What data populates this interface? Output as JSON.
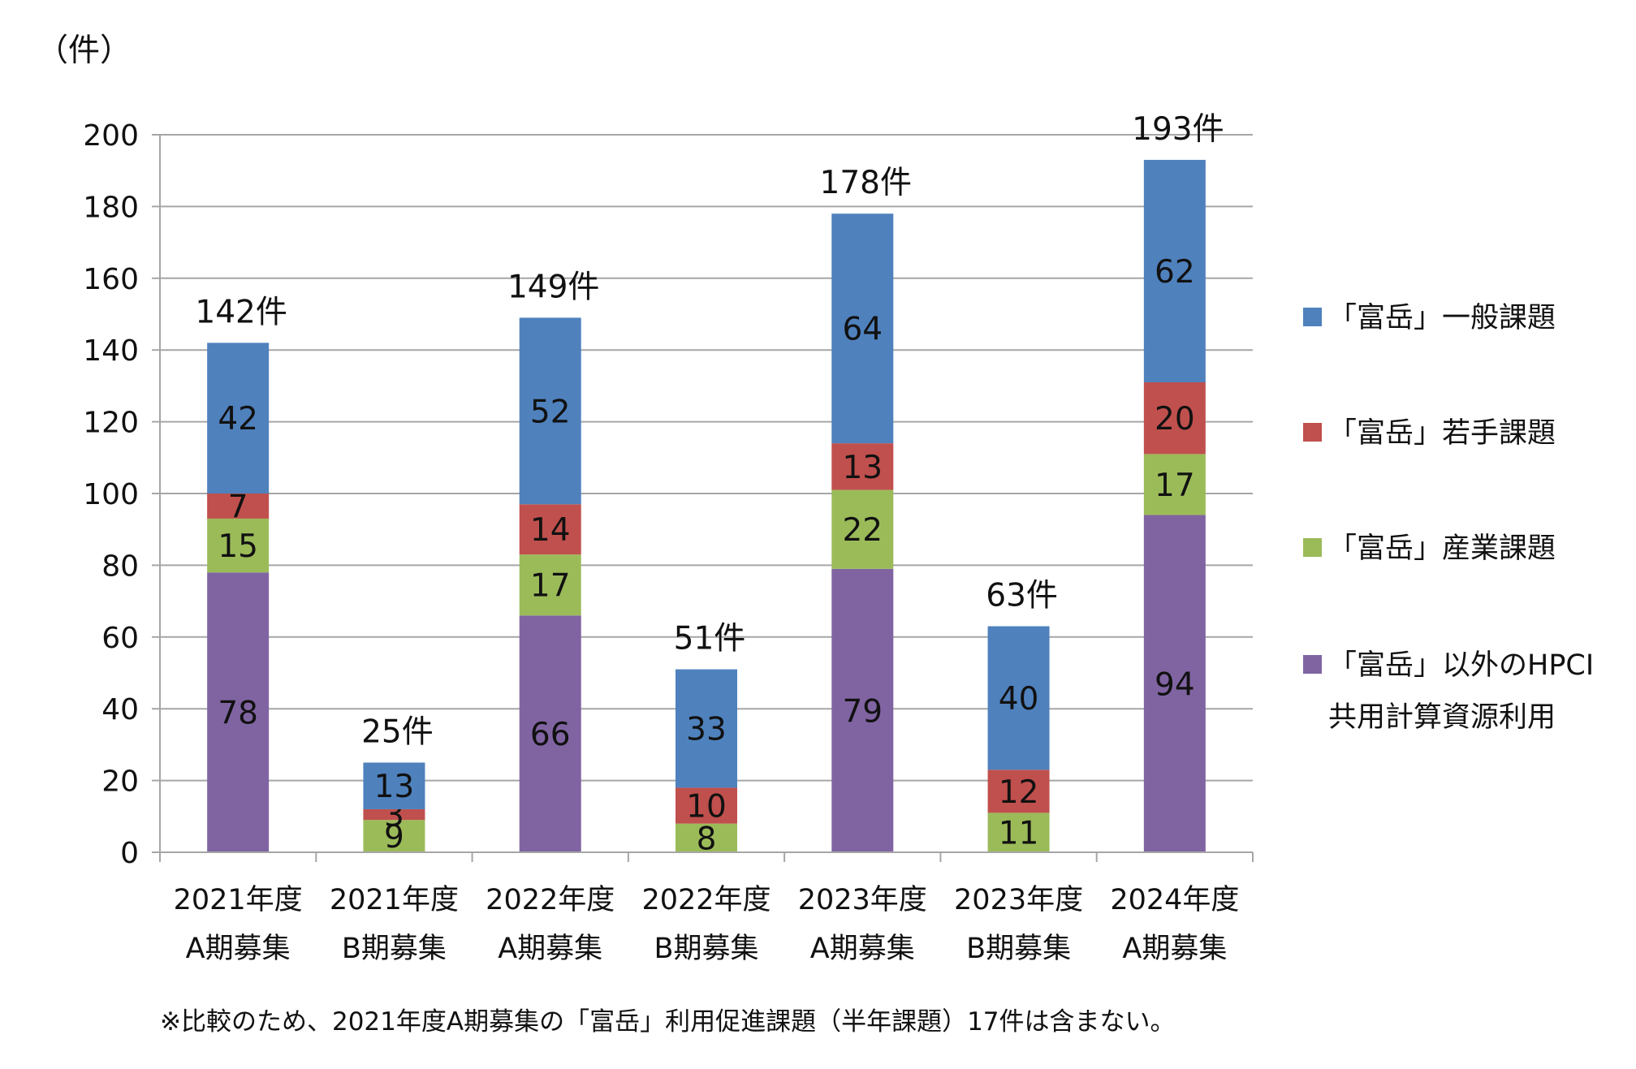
{
  "chart_data": {
    "type": "bar",
    "stacked": true,
    "unit_label": "（件）",
    "title": "",
    "xlabel": "",
    "ylabel": "",
    "ylim": [
      0,
      200
    ],
    "yticks": [
      0,
      20,
      40,
      60,
      80,
      100,
      120,
      140,
      160,
      180,
      200
    ],
    "grid": true,
    "legend_position": "right",
    "categories": [
      [
        "2021年度",
        "A期募集"
      ],
      [
        "2021年度",
        "B期募集"
      ],
      [
        "2022年度",
        "A期募集"
      ],
      [
        "2022年度",
        "B期募集"
      ],
      [
        "2023年度",
        "A期募集"
      ],
      [
        "2023年度",
        "B期募集"
      ],
      [
        "2024年度",
        "A期募集"
      ]
    ],
    "series": [
      {
        "name": "「富岳」以外のHPCI共用計算資源利用",
        "legend_lines": [
          "「富岳」以外のHPCI",
          "共用計算資源利用"
        ],
        "color": "#8064a2",
        "values": [
          78,
          0,
          66,
          0,
          79,
          0,
          94
        ]
      },
      {
        "name": "「富岳」産業課題",
        "legend_lines": [
          "「富岳」産業課題"
        ],
        "color": "#9bbb59",
        "values": [
          15,
          9,
          17,
          8,
          22,
          11,
          17
        ]
      },
      {
        "name": "「富岳」若手課題",
        "legend_lines": [
          "「富岳」若手課題"
        ],
        "color": "#c0504d",
        "values": [
          7,
          3,
          14,
          10,
          13,
          12,
          20
        ]
      },
      {
        "name": "「富岳」一般課題",
        "legend_lines": [
          "「富岳」一般課題"
        ],
        "color": "#4f81bd",
        "values": [
          42,
          13,
          52,
          33,
          64,
          40,
          62
        ]
      }
    ],
    "totals": [
      "142件",
      "25件",
      "149件",
      "51件",
      "178件",
      "63件",
      "193件"
    ],
    "footnote": "※比較のため、2021年度A期募集の「富岳」利用促進課題（半年課題）17件は含まない。"
  }
}
